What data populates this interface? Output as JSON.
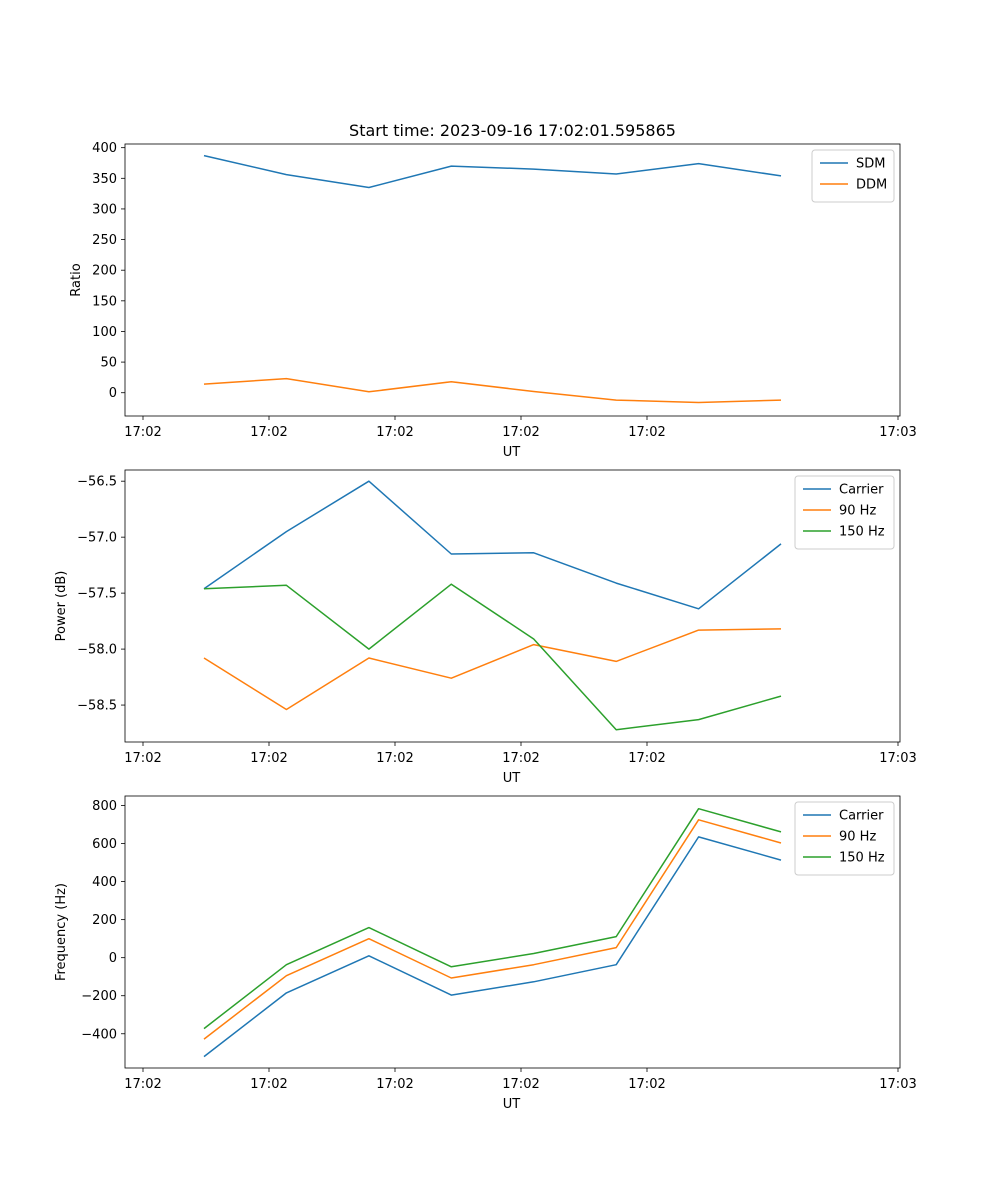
{
  "chart_data": [
    {
      "type": "line",
      "title": "Start time: 2023-09-16 17:02:01.595865",
      "xlabel": "UT",
      "ylabel": "Ratio",
      "x_tick_labels": [
        "17:02",
        "17:02",
        "17:02",
        "17:02",
        "17:02",
        "17:03"
      ],
      "y_ticks": [
        0,
        50,
        100,
        150,
        200,
        250,
        300,
        350,
        400
      ],
      "ylim": [
        -38,
        406
      ],
      "x": [
        1,
        2,
        3,
        4,
        5,
        6,
        7,
        8
      ],
      "series": [
        {
          "name": "SDM",
          "color": "#1f77b4",
          "values": [
            387,
            356,
            335,
            370,
            365,
            357,
            374,
            354
          ]
        },
        {
          "name": "DDM",
          "color": "#ff7f0e",
          "values": [
            14,
            23,
            1.5,
            18,
            2,
            -12,
            -16,
            -12
          ]
        }
      ],
      "legend": "top-right"
    },
    {
      "type": "line",
      "title": "",
      "xlabel": "UT",
      "ylabel": "Power (dB)",
      "x_tick_labels": [
        "17:02",
        "17:02",
        "17:02",
        "17:02",
        "17:02",
        "17:03"
      ],
      "y_ticks": [
        -56.5,
        -57.0,
        -57.5,
        -58.0,
        -58.5
      ],
      "y_tick_labels": [
        "−56.5",
        "−57.0",
        "−57.5",
        "−58.0",
        "−58.5"
      ],
      "ylim": [
        -58.83,
        -56.4
      ],
      "x": [
        1,
        2,
        3,
        4,
        5,
        6,
        7,
        8
      ],
      "series": [
        {
          "name": "Carrier",
          "color": "#1f77b4",
          "values": [
            -57.46,
            -56.95,
            -56.5,
            -57.15,
            -57.14,
            -57.41,
            -57.64,
            -57.06
          ]
        },
        {
          "name": "90 Hz",
          "color": "#ff7f0e",
          "values": [
            -58.08,
            -58.54,
            -58.08,
            -58.26,
            -57.96,
            -58.11,
            -57.83,
            -57.82
          ]
        },
        {
          "name": "150 Hz",
          "color": "#2ca02c",
          "values": [
            -57.46,
            -57.43,
            -58.0,
            -57.42,
            -57.91,
            -58.72,
            -58.63,
            -58.42
          ]
        }
      ],
      "legend": "top-right"
    },
    {
      "type": "line",
      "title": "",
      "xlabel": "UT",
      "ylabel": "Frequency (Hz)",
      "x_tick_labels": [
        "17:02",
        "17:02",
        "17:02",
        "17:02",
        "17:02",
        "17:03"
      ],
      "y_ticks": [
        -400,
        -200,
        0,
        200,
        400,
        600,
        800
      ],
      "y_tick_labels": [
        "−400",
        "−200",
        "0",
        "200",
        "400",
        "600",
        "800"
      ],
      "ylim": [
        -580,
        850
      ],
      "x": [
        1,
        2,
        3,
        4,
        5,
        6,
        7,
        8
      ],
      "series": [
        {
          "name": "Carrier",
          "color": "#1f77b4",
          "values": [
            -520,
            -185,
            10,
            -197,
            -127,
            -37,
            635,
            513
          ]
        },
        {
          "name": "90 Hz",
          "color": "#ff7f0e",
          "values": [
            -428,
            -95,
            100,
            -107,
            -37,
            53,
            725,
            603
          ]
        },
        {
          "name": "150 Hz",
          "color": "#2ca02c",
          "values": [
            -373,
            -37,
            158,
            -48,
            22,
            111,
            783,
            661
          ]
        }
      ],
      "legend": "top-right"
    }
  ]
}
